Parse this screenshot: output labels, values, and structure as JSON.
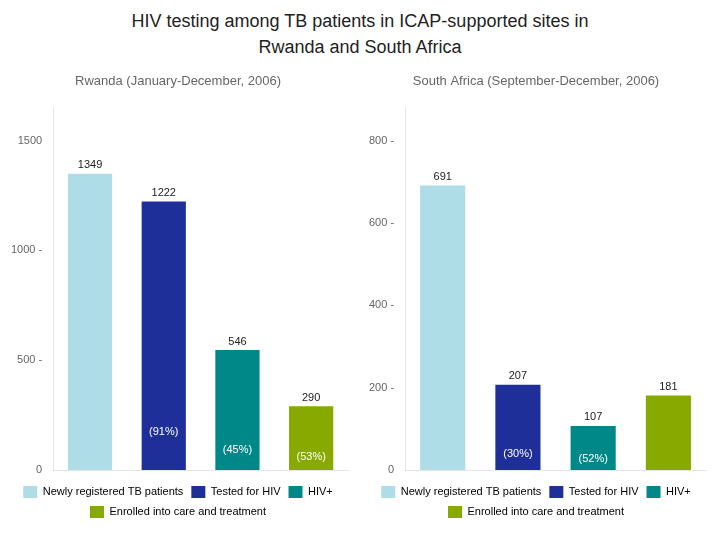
{
  "title": [
    "HIV testing among TB patients in ICAP-supported sites in",
    "Rwanda and South Africa"
  ],
  "chart_data": [
    {
      "type": "bar",
      "subtitle": "Rwanda (January-December, 2006)",
      "categories": [
        "Newly registered TB patients",
        "Tested for HIV",
        "HIV+",
        "Enrolled into care and treatment"
      ],
      "values": [
        1349,
        1222,
        546,
        290
      ],
      "annotations": [
        null,
        "(91%)",
        "(45%)",
        "(53%)"
      ],
      "colors": [
        "#aedde8",
        "#1e2f99",
        "#008888",
        "#88aa00"
      ],
      "ylim": [
        0,
        1650
      ],
      "yticks": [
        0,
        {
          "value": 500,
          "label": "500 -"
        },
        {
          "value": 1000,
          "label": "1000 -"
        },
        1500
      ],
      "grid": false,
      "legend": "bottom",
      "data_labels": true,
      "tick_labels": "y"
    },
    {
      "type": "bar",
      "subtitle": "South Africa (September-December, 2006)",
      "categories": [
        "Newly registered TB patients",
        "Tested for HIV",
        "HIV+",
        "Enrolled into care and treatment"
      ],
      "values": [
        691,
        207,
        107,
        181
      ],
      "annotations": [
        null,
        "(30%)",
        "(52%)",
        null
      ],
      "colors": [
        "#aedde8",
        "#1e2f99",
        "#008888",
        "#88aa00"
      ],
      "ylim": [
        0,
        880
      ],
      "yticks": [
        0,
        {
          "value": 200,
          "label": "200 -"
        },
        {
          "value": 400,
          "label": "400 -"
        },
        {
          "value": 600,
          "label": "600 -"
        },
        {
          "value": 800,
          "label": "800 -"
        }
      ],
      "grid": false,
      "legend": "bottom",
      "data_labels": true,
      "tick_labels": "y"
    }
  ]
}
